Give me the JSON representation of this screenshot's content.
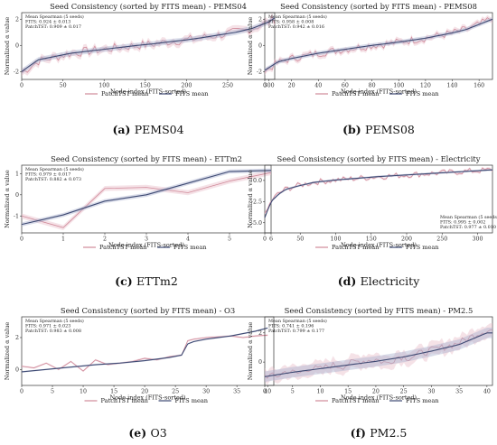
{
  "chart_data": [
    {
      "type": "line",
      "title": "Seed Consistency (sorted by FITS mean) - PEMS04",
      "caption_letter": "(a)",
      "caption_name": "PEMS04",
      "xlabel": "Node index (FITS-sorted)",
      "ylabel": "Normalized α value",
      "xlim": [
        0,
        307
      ],
      "ylim": [
        -2.6,
        2.5
      ],
      "xticks": [
        0,
        50,
        100,
        150,
        200,
        250,
        300
      ],
      "yticks": [
        -2,
        0,
        2
      ],
      "annotation": [
        "Mean Spearman (5 seeds)",
        "FITS: 0.924 ± 0.013",
        "PatchTST: 0.909 ± 0.017"
      ],
      "annotation_pos": "top-left",
      "legend": "below",
      "series": [
        {
          "name": "PatchTST mean",
          "x": [
            0,
            20,
            40,
            60,
            80,
            100,
            120,
            140,
            160,
            180,
            200,
            220,
            240,
            260,
            280,
            300,
            307
          ],
          "y": [
            -2.1,
            -1.2,
            -0.9,
            -0.6,
            -0.45,
            -0.3,
            -0.15,
            0.0,
            0.1,
            0.3,
            0.4,
            0.6,
            0.8,
            1.0,
            1.3,
            1.8,
            2.0
          ]
        },
        {
          "name": "FITS mean",
          "x": [
            0,
            20,
            40,
            60,
            80,
            100,
            120,
            140,
            160,
            180,
            200,
            220,
            240,
            260,
            280,
            300,
            307
          ],
          "y": [
            -2.0,
            -1.1,
            -0.85,
            -0.6,
            -0.45,
            -0.3,
            -0.15,
            0.0,
            0.12,
            0.28,
            0.42,
            0.6,
            0.8,
            1.0,
            1.3,
            1.8,
            2.1
          ]
        }
      ]
    },
    {
      "type": "line",
      "title": "Seed Consistency (sorted by FITS mean) - PEMS08",
      "caption_letter": "(b)",
      "caption_name": "PEMS08",
      "xlabel": "Node index (FITS-sorted)",
      "ylabel": "Normalized α value",
      "xlim": [
        0,
        170
      ],
      "ylim": [
        -2.6,
        2.5
      ],
      "xticks": [
        0,
        20,
        40,
        60,
        80,
        100,
        120,
        140,
        160
      ],
      "yticks": [
        -2,
        0,
        2
      ],
      "annotation": [
        "Mean Spearman (5 seeds)",
        "FITS: 0.958 ± 0.008",
        "PatchTST: 0.942 ± 0.016"
      ],
      "annotation_pos": "top-left",
      "legend": "below",
      "series": [
        {
          "name": "PatchTST mean",
          "x": [
            0,
            10,
            20,
            30,
            40,
            50,
            60,
            70,
            80,
            90,
            100,
            110,
            120,
            130,
            140,
            150,
            160,
            170
          ],
          "y": [
            -2.0,
            -1.3,
            -1.0,
            -0.8,
            -0.6,
            -0.45,
            -0.3,
            -0.15,
            0.0,
            0.1,
            0.25,
            0.4,
            0.55,
            0.75,
            0.95,
            1.2,
            1.6,
            2.1
          ]
        },
        {
          "name": "FITS mean",
          "x": [
            0,
            10,
            20,
            30,
            40,
            50,
            60,
            70,
            80,
            90,
            100,
            110,
            120,
            130,
            140,
            150,
            160,
            170
          ],
          "y": [
            -1.9,
            -1.25,
            -1.0,
            -0.8,
            -0.6,
            -0.45,
            -0.3,
            -0.15,
            0.0,
            0.12,
            0.25,
            0.4,
            0.55,
            0.75,
            0.95,
            1.2,
            1.6,
            2.0
          ]
        }
      ]
    },
    {
      "type": "line",
      "title": "Seed Consistency (sorted by FITS mean) - ETTm2",
      "caption_letter": "(c)",
      "caption_name": "ETTm2",
      "xlabel": "Node index (FITS-sorted)",
      "ylabel": "Normalized α value",
      "xlim": [
        0,
        6
      ],
      "ylim": [
        -1.8,
        1.4
      ],
      "xticks": [
        0,
        1,
        2,
        3,
        4,
        5,
        6
      ],
      "yticks": [
        -1,
        0,
        1
      ],
      "annotation": [
        "Mean Spearman (5 seeds)",
        "FITS: 0.979 ± 0.017",
        "PatchTST: 0.882 ± 0.073"
      ],
      "annotation_pos": "top-left",
      "legend": "below",
      "series": [
        {
          "name": "PatchTST mean",
          "x": [
            0,
            1,
            2,
            3,
            4,
            5,
            6
          ],
          "y": [
            -1.0,
            -1.55,
            0.3,
            0.35,
            0.1,
            0.65,
            1.05
          ]
        },
        {
          "name": "FITS mean",
          "x": [
            0,
            1,
            2,
            3,
            4,
            5,
            6
          ],
          "y": [
            -1.4,
            -0.95,
            -0.3,
            0.0,
            0.55,
            1.1,
            1.15
          ]
        }
      ]
    },
    {
      "type": "line",
      "title": "Seed Consistency (sorted by FITS mean) - Electricity",
      "caption_letter": "(d)",
      "caption_name": "Electricity",
      "xlabel": "Node index (FITS-sorted)",
      "ylabel": "Normalized α value",
      "xlim": [
        0,
        321
      ],
      "ylim": [
        -6.2,
        1.8
      ],
      "xticks": [
        0,
        50,
        100,
        150,
        200,
        250,
        300
      ],
      "yticks": [
        -5.0,
        -2.5,
        0.0
      ],
      "annotation": [
        "Mean Spearman (5 seeds)",
        "FITS: 0.995 ± 0.002",
        "PatchTST: 0.977 ± 0.010"
      ],
      "annotation_pos": "bottom-right",
      "legend": "below",
      "series": [
        {
          "name": "PatchTST mean",
          "x": [
            0,
            5,
            10,
            20,
            30,
            50,
            70,
            100,
            130,
            160,
            200,
            240,
            280,
            321
          ],
          "y": [
            -4.2,
            -3.2,
            -2.3,
            -1.5,
            -1.0,
            -0.55,
            -0.2,
            0.05,
            0.25,
            0.45,
            0.65,
            0.85,
            1.05,
            1.25
          ]
        },
        {
          "name": "FITS mean",
          "x": [
            0,
            5,
            10,
            20,
            30,
            50,
            70,
            100,
            130,
            160,
            200,
            240,
            280,
            321
          ],
          "y": [
            -4.4,
            -3.3,
            -2.4,
            -1.6,
            -1.05,
            -0.6,
            -0.22,
            0.05,
            0.25,
            0.45,
            0.65,
            0.85,
            1.05,
            1.25
          ]
        }
      ]
    },
    {
      "type": "line",
      "title": "Seed Consistency (sorted by FITS mean) - O3",
      "caption_letter": "(e)",
      "caption_name": "O3",
      "xlabel": "Node index (FITS-sorted)",
      "ylabel": "Normalized α value",
      "xlim": [
        0,
        41
      ],
      "ylim": [
        -1.0,
        3.3
      ],
      "xticks": [
        0,
        5,
        10,
        15,
        20,
        25,
        30,
        35,
        40
      ],
      "yticks": [
        0,
        2
      ],
      "annotation": [
        "Mean Spearman (5 seeds)",
        "FITS: 0.971 ± 0.023",
        "PatchTST: 0.983 ± 0.008"
      ],
      "annotation_pos": "top-left",
      "legend": "below",
      "series": [
        {
          "name": "PatchTST mean",
          "x": [
            0,
            2,
            4,
            6,
            8,
            10,
            12,
            14,
            16,
            18,
            20,
            22,
            24,
            26,
            27,
            28,
            30,
            32,
            34,
            36,
            38,
            40
          ],
          "y": [
            0.2,
            0.1,
            0.4,
            0.0,
            0.5,
            -0.1,
            0.6,
            0.3,
            0.4,
            0.5,
            0.7,
            0.6,
            0.8,
            0.9,
            1.8,
            1.9,
            2.0,
            2.05,
            2.1,
            2.0,
            2.1,
            2.15
          ]
        },
        {
          "name": "FITS mean",
          "x": [
            0,
            4,
            8,
            12,
            16,
            20,
            24,
            26,
            27,
            28,
            30,
            32,
            34,
            36,
            38,
            40
          ],
          "y": [
            -0.15,
            0.0,
            0.15,
            0.3,
            0.4,
            0.55,
            0.75,
            0.9,
            1.6,
            1.75,
            1.9,
            2.0,
            2.1,
            2.25,
            2.4,
            2.6
          ]
        }
      ]
    },
    {
      "type": "line",
      "title": "Seed Consistency (sorted by FITS mean) - PM2.5",
      "caption_letter": "(f)",
      "caption_name": "PM2.5",
      "xlabel": "Node index (FITS-sorted)",
      "ylabel": "Normalized α value",
      "xlim": [
        0,
        41
      ],
      "ylim": [
        -1.6,
        3.1
      ],
      "xticks": [
        0,
        5,
        10,
        15,
        20,
        25,
        30,
        35,
        40
      ],
      "yticks": [
        0,
        2
      ],
      "annotation": [
        "Mean Spearman (5 seeds)",
        "FITS: 0.741 ± 0.196",
        "PatchTST: 0.799 ± 0.177"
      ],
      "annotation_pos": "top-left",
      "legend": "below",
      "series": [
        {
          "name": "PatchTST mean",
          "x": [
            0,
            2,
            4,
            6,
            8,
            10,
            12,
            14,
            16,
            18,
            20,
            22,
            24,
            26,
            28,
            30,
            32,
            34,
            36,
            38,
            40
          ],
          "y": [
            -0.9,
            -1.0,
            -0.6,
            -0.8,
            -0.4,
            -0.5,
            -0.2,
            -0.3,
            0.0,
            0.1,
            0.2,
            -0.1,
            0.4,
            0.3,
            0.6,
            0.8,
            1.0,
            1.2,
            1.5,
            1.9,
            2.2
          ]
        },
        {
          "name": "FITS mean",
          "x": [
            0,
            5,
            10,
            15,
            20,
            25,
            30,
            35,
            40
          ],
          "y": [
            -1.0,
            -0.7,
            -0.45,
            -0.2,
            0.05,
            0.35,
            0.75,
            1.2,
            2.0
          ]
        }
      ]
    }
  ],
  "colors": {
    "patchtst": "#d08a9a",
    "patchtst_band": "#e9bfc9",
    "fits": "#3e4a73",
    "fits_band": "#aab2ce"
  }
}
